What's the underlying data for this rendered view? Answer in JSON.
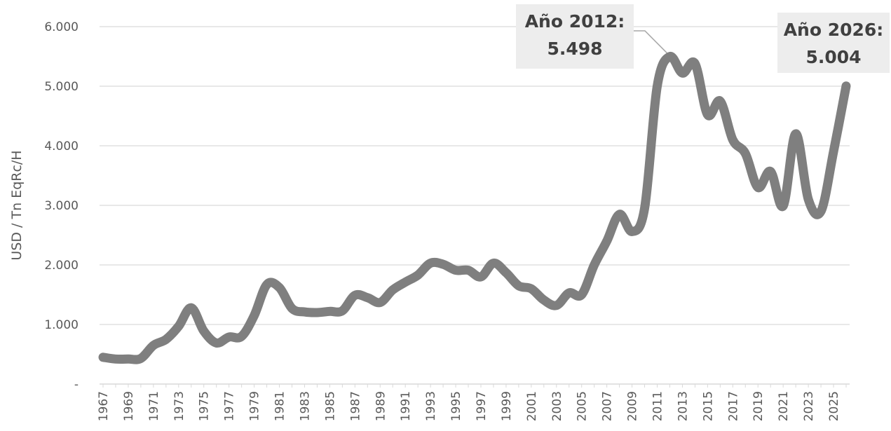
{
  "chart_data": {
    "type": "line",
    "title": "",
    "xlabel": "",
    "ylabel": "USD / Tn EqRc/H",
    "ylim": [
      0,
      6000
    ],
    "grid": true,
    "y_ticks": [
      "-",
      "1.000",
      "2.000",
      "3.000",
      "4.000",
      "5.000",
      "6.000"
    ],
    "x_tick_labels": [
      "1967",
      "1969",
      "1971",
      "1973",
      "1975",
      "1977",
      "1979",
      "1981",
      "1983",
      "1985",
      "1987",
      "1989",
      "1991",
      "1993",
      "1995",
      "1997",
      "1999",
      "2001",
      "2003",
      "2005",
      "2007",
      "2009",
      "2011",
      "2013",
      "2015",
      "2017",
      "2019",
      "2021",
      "2023",
      "2025"
    ],
    "x": [
      1967,
      1968,
      1969,
      1970,
      1971,
      1972,
      1973,
      1974,
      1975,
      1976,
      1977,
      1978,
      1979,
      1980,
      1981,
      1982,
      1983,
      1984,
      1985,
      1986,
      1987,
      1988,
      1989,
      1990,
      1991,
      1992,
      1993,
      1994,
      1995,
      1996,
      1997,
      1998,
      1999,
      2000,
      2001,
      2002,
      2003,
      2004,
      2005,
      2006,
      2007,
      2008,
      2009,
      2010,
      2011,
      2012,
      2013,
      2014,
      2015,
      2016,
      2017,
      2018,
      2019,
      2020,
      2021,
      2022,
      2023,
      2024,
      2025,
      2026
    ],
    "series": [
      {
        "color": "#7f7f7f",
        "values": [
          450,
          420,
          420,
          430,
          650,
          750,
          970,
          1280,
          890,
          690,
          790,
          800,
          1150,
          1670,
          1620,
          1270,
          1210,
          1200,
          1220,
          1230,
          1490,
          1450,
          1370,
          1580,
          1710,
          1830,
          2030,
          2010,
          1910,
          1910,
          1800,
          2030,
          1870,
          1650,
          1600,
          1410,
          1320,
          1530,
          1500,
          2000,
          2400,
          2850,
          2560,
          2950,
          5000,
          5498,
          5220,
          5380,
          4520,
          4750,
          4100,
          3870,
          3300,
          3570,
          2990,
          4200,
          3100,
          2900,
          3900,
          5004
        ]
      }
    ],
    "annotations": [
      {
        "line1": "Año 2012:",
        "line2": "5.498",
        "x": 2012,
        "y": 5498
      },
      {
        "line1": "Año 2026:",
        "line2": "5.004",
        "x": 2026,
        "y": 5004
      }
    ]
  }
}
